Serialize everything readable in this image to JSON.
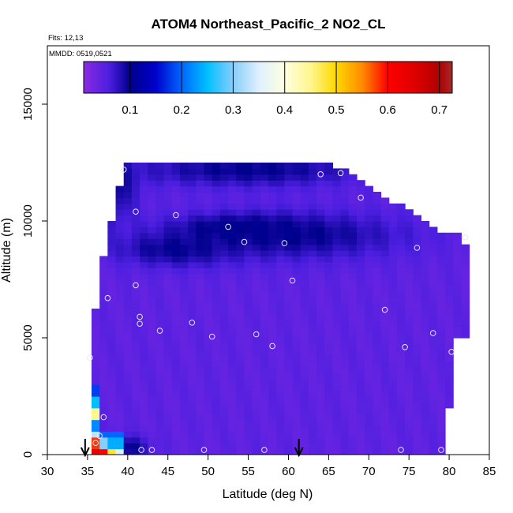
{
  "chart_data": {
    "type": "heatmap",
    "title": "ATOM4 Northeast_Pacific_2 NO2_CL",
    "annotations": {
      "flights": "Flts: 12,13",
      "dates": "MMDD: 0519,0521"
    },
    "xlabel": "Latitude (deg N)",
    "ylabel": "Altitude (m)",
    "xlim": [
      30,
      85
    ],
    "ylim": [
      0,
      17500
    ],
    "x_ticks": [
      30,
      35,
      40,
      45,
      50,
      55,
      60,
      65,
      70,
      75,
      80,
      85
    ],
    "y_ticks": [
      0,
      5000,
      10000,
      15000
    ],
    "grid": false,
    "colorbar": {
      "placement": "top-inside",
      "range": [
        0.01,
        0.725
      ],
      "ticks": [
        0.1,
        0.2,
        0.3,
        0.4,
        0.5,
        0.6,
        0.7
      ],
      "stops": [
        {
          "v": 0.01,
          "c": "#8a2be2"
        },
        {
          "v": 0.06,
          "c": "#4b1ee0"
        },
        {
          "v": 0.1,
          "c": "#00008b"
        },
        {
          "v": 0.15,
          "c": "#0000cd"
        },
        {
          "v": 0.2,
          "c": "#0066ff"
        },
        {
          "v": 0.25,
          "c": "#00bfff"
        },
        {
          "v": 0.3,
          "c": "#87cefa"
        },
        {
          "v": 0.35,
          "c": "#dff0ff"
        },
        {
          "v": 0.4,
          "c": "#ffffe0"
        },
        {
          "v": 0.45,
          "c": "#fff68f"
        },
        {
          "v": 0.5,
          "c": "#ffd700"
        },
        {
          "v": 0.55,
          "c": "#ff8c00"
        },
        {
          "v": 0.6,
          "c": "#ff0000"
        },
        {
          "v": 0.65,
          "c": "#e00000"
        },
        {
          "v": 0.7,
          "c": "#b00000"
        },
        {
          "v": 0.725,
          "c": "#a52a2a"
        }
      ]
    },
    "envelope": {
      "lat": [
        35.5,
        36,
        36.5,
        37,
        38,
        39,
        40,
        41,
        42,
        45,
        50,
        55,
        60,
        65,
        68,
        70,
        72,
        75,
        77,
        79,
        80,
        81,
        82
      ],
      "alt_top": [
        4500,
        6300,
        7500,
        8500,
        10000,
        11500,
        12500,
        12500,
        12500,
        12500,
        12500,
        12500,
        12500,
        12500,
        12000,
        11500,
        11000,
        10500,
        10000,
        9500,
        9500,
        9500,
        9000
      ],
      "alt_bottom_south": [
        {
          "lat": 35.5,
          "alt": 1500
        },
        {
          "lat": 36,
          "alt": 0
        },
        {
          "lat": 79.5,
          "alt": 0
        },
        {
          "lat": 79.5,
          "alt": 2000
        },
        {
          "lat": 80,
          "alt": 2000
        },
        {
          "lat": 80.5,
          "alt": 3000
        },
        {
          "lat": 81,
          "alt": 5000
        }
      ]
    },
    "features": [
      {
        "lat": 54,
        "alt": 9700,
        "sigma_lat": 7,
        "sigma_alt": 500,
        "value": 0.12
      },
      {
        "lat": 60,
        "alt": 9400,
        "sigma_lat": 14,
        "sigma_alt": 1000,
        "value": 0.1
      },
      {
        "lat": 46,
        "alt": 8800,
        "sigma_lat": 7,
        "sigma_alt": 700,
        "value": 0.1
      },
      {
        "lat": 55,
        "alt": 12200,
        "sigma_lat": 14,
        "sigma_alt": 700,
        "value": 0.1
      },
      {
        "lat": 38,
        "alt": 11500,
        "sigma_lat": 3,
        "sigma_alt": 1500,
        "value": 0.1
      },
      {
        "lat": 40,
        "alt": 300,
        "sigma_lat": 2.5,
        "sigma_alt": 500,
        "value": 0.1
      }
    ],
    "profile_column": [
      {
        "lat_min": 36,
        "lat_max": 37,
        "alt_min": 0,
        "alt_max": 300,
        "value": 0.65
      },
      {
        "lat_min": 37,
        "lat_max": 38,
        "alt_min": 0,
        "alt_max": 300,
        "value": 0.6
      },
      {
        "lat_min": 38,
        "lat_max": 39,
        "alt_min": 0,
        "alt_max": 300,
        "value": 0.48
      },
      {
        "lat_min": 39,
        "lat_max": 40,
        "alt_min": 0,
        "alt_max": 300,
        "value": 0.35
      },
      {
        "lat_min": 36,
        "lat_max": 36.8,
        "alt_min": 300,
        "alt_max": 700,
        "value": 0.58
      },
      {
        "lat_min": 36.8,
        "lat_max": 38,
        "alt_min": 300,
        "alt_max": 700,
        "value": 0.3
      },
      {
        "lat_min": 38,
        "lat_max": 40,
        "alt_min": 300,
        "alt_max": 700,
        "value": 0.24
      },
      {
        "lat_min": 36,
        "lat_max": 37,
        "alt_min": 700,
        "alt_max": 1100,
        "value": 0.33
      },
      {
        "lat_min": 37,
        "lat_max": 40,
        "alt_min": 700,
        "alt_max": 1100,
        "value": 0.2
      },
      {
        "lat_min": 36,
        "lat_max": 36.6,
        "alt_min": 1100,
        "alt_max": 1600,
        "value": 0.22
      },
      {
        "lat_min": 36,
        "lat_max": 36.6,
        "alt_min": 1600,
        "alt_max": 2000,
        "value": 0.45
      },
      {
        "lat_min": 36,
        "lat_max": 36.6,
        "alt_min": 2000,
        "alt_max": 2500,
        "value": 0.25
      },
      {
        "lat_min": 36,
        "lat_max": 36.6,
        "alt_min": 2500,
        "alt_max": 3000,
        "value": 0.18
      },
      {
        "lat_min": 35.6,
        "lat_max": 36.1,
        "alt_min": 2500,
        "alt_max": 2900,
        "value": 0.25
      }
    ],
    "base_value": 0.045,
    "points": [
      [
        39.5,
        12200
      ],
      [
        64,
        12000
      ],
      [
        66.5,
        12050
      ],
      [
        69,
        11000
      ],
      [
        41,
        10400
      ],
      [
        46,
        10250
      ],
      [
        52.5,
        9750
      ],
      [
        54.5,
        9100
      ],
      [
        59.5,
        9050
      ],
      [
        76,
        8850
      ],
      [
        82,
        9300
      ],
      [
        60.5,
        7450
      ],
      [
        37.5,
        6700
      ],
      [
        41,
        7250
      ],
      [
        41.5,
        5900
      ],
      [
        41.5,
        5600
      ],
      [
        48,
        5650
      ],
      [
        44,
        5300
      ],
      [
        50.5,
        5050
      ],
      [
        56,
        5150
      ],
      [
        58,
        4650
      ],
      [
        72,
        6200
      ],
      [
        74.5,
        4600
      ],
      [
        78,
        5200
      ],
      [
        80.3,
        4400
      ],
      [
        35.3,
        4150
      ],
      [
        37,
        1600
      ],
      [
        36.5,
        800
      ],
      [
        36,
        500
      ],
      [
        41.7,
        200
      ],
      [
        43,
        200
      ],
      [
        49.5,
        200
      ],
      [
        57,
        200
      ],
      [
        74,
        200
      ],
      [
        79,
        200
      ]
    ],
    "markers": [
      {
        "type": "arrow-down",
        "lat": 34.7
      },
      {
        "type": "arrow-down",
        "lat": 61.3
      }
    ]
  }
}
